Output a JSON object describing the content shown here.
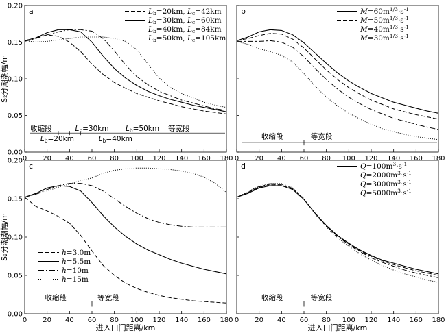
{
  "charts": [
    {
      "panel": "a",
      "xlim": [
        0,
        180
      ],
      "ylim": [
        0,
        0.2
      ],
      "xticks": [
        0,
        20,
        40,
        60,
        80,
        100,
        120,
        140,
        160,
        180
      ],
      "yticks": [
        0,
        0.05,
        0.1,
        0.15,
        0.2
      ],
      "ytick_labels": [
        "0.00",
        "0.05",
        "0.10",
        "0.15",
        "0.20"
      ],
      "ylabel": "S₂分潮潮幅/m",
      "xlabel": "",
      "legend": "top-right",
      "series": [
        {
          "name": "Lb=20km, Lc=42km",
          "dash": "6,3",
          "x": [
            0,
            10,
            20,
            30,
            40,
            50,
            60,
            70,
            80,
            90,
            100,
            110,
            120,
            130,
            140,
            150,
            160,
            170,
            180
          ],
          "y": [
            0.152,
            0.156,
            0.16,
            0.158,
            0.15,
            0.137,
            0.12,
            0.106,
            0.095,
            0.087,
            0.08,
            0.075,
            0.07,
            0.066,
            0.062,
            0.059,
            0.056,
            0.054,
            0.052
          ]
        },
        {
          "name": "Lb=30km, Lc=60km",
          "dash": "",
          "x": [
            0,
            10,
            20,
            30,
            40,
            50,
            60,
            70,
            80,
            90,
            100,
            110,
            120,
            130,
            140,
            150,
            160,
            170,
            180
          ],
          "y": [
            0.152,
            0.156,
            0.163,
            0.167,
            0.167,
            0.164,
            0.15,
            0.131,
            0.114,
            0.101,
            0.091,
            0.083,
            0.077,
            0.072,
            0.068,
            0.064,
            0.061,
            0.058,
            0.055
          ]
        },
        {
          "name": "Lb=40km, Lc=84km",
          "dash": "8,3,2,3",
          "x": [
            0,
            10,
            20,
            30,
            40,
            50,
            60,
            70,
            80,
            90,
            100,
            110,
            120,
            130,
            140,
            150,
            160,
            170,
            180
          ],
          "y": [
            0.151,
            0.155,
            0.16,
            0.164,
            0.167,
            0.167,
            0.165,
            0.155,
            0.138,
            0.119,
            0.103,
            0.092,
            0.083,
            0.077,
            0.071,
            0.067,
            0.063,
            0.059,
            0.057
          ]
        },
        {
          "name": "Lb=50km, Lc=105km",
          "dash": "1,2",
          "x": [
            0,
            10,
            20,
            30,
            40,
            50,
            60,
            70,
            80,
            90,
            100,
            110,
            120,
            130,
            140,
            150,
            160,
            170,
            180
          ],
          "y": [
            0.152,
            0.15,
            0.151,
            0.153,
            0.155,
            0.157,
            0.157,
            0.157,
            0.155,
            0.151,
            0.14,
            0.12,
            0.101,
            0.088,
            0.08,
            0.074,
            0.068,
            0.064,
            0.061
          ]
        }
      ],
      "annotations": [
        {
          "text": "收缩段",
          "x": 5,
          "y": 0.029
        },
        {
          "text": "Lb=30km",
          "x": 45,
          "y": 0.029
        },
        {
          "text": "Lb=50km",
          "x": 90,
          "y": 0.029
        },
        {
          "text": "等宽段",
          "x": 128,
          "y": 0.029
        },
        {
          "text": "Lb=20km",
          "x": 14,
          "y": 0.015
        },
        {
          "text": "Lb=40km",
          "x": 66,
          "y": 0.015
        }
      ]
    },
    {
      "panel": "b",
      "xlim": [
        0,
        180
      ],
      "ylim": [
        0,
        0.2
      ],
      "xticks": [
        0,
        20,
        40,
        60,
        80,
        100,
        120,
        140,
        160,
        180
      ],
      "yticks": [
        0,
        0.05,
        0.1,
        0.15,
        0.2
      ],
      "ylabel": "",
      "xlabel": "",
      "legend": "top-right",
      "series": [
        {
          "name": "M=60m1/3·s-1",
          "dash": "",
          "x": [
            0,
            10,
            20,
            30,
            40,
            50,
            60,
            70,
            80,
            90,
            100,
            110,
            120,
            130,
            140,
            150,
            160,
            170,
            180
          ],
          "y": [
            0.152,
            0.157,
            0.164,
            0.167,
            0.166,
            0.16,
            0.149,
            0.135,
            0.121,
            0.108,
            0.097,
            0.088,
            0.08,
            0.074,
            0.068,
            0.064,
            0.06,
            0.056,
            0.053
          ]
        },
        {
          "name": "M=50m1/3·s-1",
          "dash": "6,3",
          "x": [
            0,
            10,
            20,
            30,
            40,
            50,
            60,
            70,
            80,
            90,
            100,
            110,
            120,
            130,
            140,
            150,
            160,
            170,
            180
          ],
          "y": [
            0.152,
            0.155,
            0.159,
            0.162,
            0.161,
            0.154,
            0.142,
            0.127,
            0.112,
            0.099,
            0.088,
            0.079,
            0.071,
            0.065,
            0.059,
            0.055,
            0.051,
            0.048,
            0.045
          ]
        },
        {
          "name": "M=40m1/3·s-1",
          "dash": "8,3,2,3",
          "x": [
            0,
            10,
            20,
            30,
            40,
            50,
            60,
            70,
            80,
            90,
            100,
            110,
            120,
            130,
            140,
            150,
            160,
            170,
            180
          ],
          "y": [
            0.151,
            0.151,
            0.151,
            0.152,
            0.15,
            0.143,
            0.13,
            0.114,
            0.099,
            0.086,
            0.075,
            0.066,
            0.058,
            0.052,
            0.046,
            0.042,
            0.038,
            0.034,
            0.031
          ]
        },
        {
          "name": "M=30m1/3·s-1",
          "dash": "1,2",
          "x": [
            0,
            10,
            20,
            30,
            40,
            50,
            60,
            70,
            80,
            90,
            100,
            110,
            120,
            130,
            140,
            150,
            160,
            170,
            180
          ],
          "y": [
            0.151,
            0.147,
            0.141,
            0.137,
            0.132,
            0.123,
            0.107,
            0.09,
            0.075,
            0.063,
            0.053,
            0.045,
            0.038,
            0.032,
            0.028,
            0.024,
            0.021,
            0.019,
            0.017
          ]
        }
      ],
      "annotations": [
        {
          "text": "收缩段",
          "x": 22,
          "y": 0.018
        },
        {
          "text": "等宽段",
          "x": 66,
          "y": 0.018
        }
      ]
    },
    {
      "panel": "c",
      "xlim": [
        0,
        180
      ],
      "ylim": [
        0,
        0.2
      ],
      "xticks": [
        0,
        20,
        40,
        60,
        80,
        100,
        120,
        140,
        160,
        180
      ],
      "yticks": [
        0,
        0.05,
        0.1,
        0.15,
        0.2
      ],
      "ytick_labels": [
        "0.00",
        "0.05",
        "0.10",
        "0.15",
        "0.20"
      ],
      "ylabel": "S₂分潮潮幅/m",
      "xlabel": "",
      "legend": "bottom-left",
      "series": [
        {
          "name": "h=3.0m",
          "dash": "6,3",
          "x": [
            0,
            10,
            20,
            30,
            40,
            50,
            60,
            70,
            80,
            90,
            100,
            110,
            120,
            130,
            140,
            150,
            160,
            170,
            180
          ],
          "y": [
            0.152,
            0.14,
            0.134,
            0.127,
            0.118,
            0.102,
            0.082,
            0.063,
            0.05,
            0.04,
            0.033,
            0.028,
            0.024,
            0.021,
            0.019,
            0.017,
            0.016,
            0.015,
            0.014
          ]
        },
        {
          "name": "h=5.5m",
          "dash": "",
          "x": [
            0,
            10,
            20,
            30,
            40,
            50,
            60,
            70,
            80,
            90,
            100,
            110,
            120,
            130,
            140,
            150,
            160,
            170,
            180
          ],
          "y": [
            0.152,
            0.157,
            0.164,
            0.167,
            0.166,
            0.16,
            0.145,
            0.128,
            0.113,
            0.101,
            0.091,
            0.083,
            0.077,
            0.071,
            0.066,
            0.062,
            0.058,
            0.055,
            0.052
          ]
        },
        {
          "name": "h=10m",
          "dash": "8,3,2,3",
          "x": [
            0,
            10,
            20,
            30,
            40,
            50,
            60,
            70,
            80,
            90,
            100,
            110,
            120,
            130,
            140,
            150,
            160,
            170,
            180
          ],
          "y": [
            0.152,
            0.156,
            0.162,
            0.167,
            0.17,
            0.17,
            0.167,
            0.16,
            0.15,
            0.14,
            0.131,
            0.124,
            0.119,
            0.116,
            0.114,
            0.113,
            0.113,
            0.113,
            0.113
          ]
        },
        {
          "name": "h=15m",
          "dash": "1,2",
          "x": [
            0,
            10,
            20,
            30,
            40,
            50,
            60,
            70,
            80,
            90,
            100,
            110,
            120,
            130,
            140,
            150,
            160,
            170,
            180
          ],
          "y": [
            0.152,
            0.156,
            0.16,
            0.165,
            0.169,
            0.174,
            0.177,
            0.183,
            0.187,
            0.189,
            0.19,
            0.19,
            0.189,
            0.188,
            0.186,
            0.183,
            0.178,
            0.17,
            0.158
          ]
        }
      ],
      "annotations": [
        {
          "text": "收缩段",
          "x": 18,
          "y": 0.018
        },
        {
          "text": "等宽段",
          "x": 65,
          "y": 0.018
        }
      ]
    },
    {
      "panel": "d",
      "xlim": [
        0,
        180
      ],
      "ylim": [
        0,
        0.2
      ],
      "xticks": [
        0,
        20,
        40,
        60,
        80,
        100,
        120,
        140,
        160,
        180
      ],
      "yticks": [
        0,
        0.05,
        0.1,
        0.15,
        0.2
      ],
      "ylabel": "",
      "xlabel": "",
      "legend": "top-right",
      "series": [
        {
          "name": "Q=100m3·s-1",
          "dash": "",
          "x": [
            0,
            10,
            20,
            30,
            40,
            50,
            60,
            70,
            80,
            90,
            100,
            110,
            120,
            130,
            140,
            150,
            160,
            170,
            180
          ],
          "y": [
            0.152,
            0.157,
            0.164,
            0.167,
            0.167,
            0.162,
            0.149,
            0.131,
            0.115,
            0.102,
            0.092,
            0.083,
            0.076,
            0.07,
            0.066,
            0.062,
            0.058,
            0.055,
            0.052
          ]
        },
        {
          "name": "Q=2000m3·s-1",
          "dash": "6,3",
          "x": [
            0,
            10,
            20,
            30,
            40,
            50,
            60,
            70,
            80,
            90,
            100,
            110,
            120,
            130,
            140,
            150,
            160,
            170,
            180
          ],
          "y": [
            0.152,
            0.158,
            0.165,
            0.168,
            0.168,
            0.162,
            0.149,
            0.131,
            0.115,
            0.102,
            0.091,
            0.082,
            0.075,
            0.069,
            0.064,
            0.06,
            0.056,
            0.053,
            0.05
          ]
        },
        {
          "name": "Q=3000m3·s-1",
          "dash": "8,3,2,3",
          "x": [
            0,
            10,
            20,
            30,
            40,
            50,
            60,
            70,
            80,
            90,
            100,
            110,
            120,
            130,
            140,
            150,
            160,
            170,
            180
          ],
          "y": [
            0.152,
            0.158,
            0.166,
            0.169,
            0.169,
            0.163,
            0.149,
            0.131,
            0.114,
            0.101,
            0.09,
            0.081,
            0.073,
            0.067,
            0.062,
            0.057,
            0.053,
            0.05,
            0.047
          ]
        },
        {
          "name": "Q=5000m3·s-1",
          "dash": "1,2",
          "x": [
            0,
            10,
            20,
            30,
            40,
            50,
            60,
            70,
            80,
            90,
            100,
            110,
            120,
            130,
            140,
            150,
            160,
            170,
            180
          ],
          "y": [
            0.152,
            0.159,
            0.167,
            0.17,
            0.17,
            0.164,
            0.15,
            0.13,
            0.113,
            0.099,
            0.088,
            0.078,
            0.07,
            0.063,
            0.057,
            0.052,
            0.048,
            0.044,
            0.041
          ]
        }
      ],
      "annotations": [
        {
          "text": "收缩段",
          "x": 22,
          "y": 0.018
        },
        {
          "text": "等宽段",
          "x": 66,
          "y": 0.018
        }
      ]
    }
  ],
  "chart_data": [
    {
      "type": "line",
      "panel": "a"
    },
    {
      "type": "line",
      "panel": "b"
    },
    {
      "type": "line",
      "panel": "c"
    },
    {
      "type": "line",
      "panel": "d"
    }
  ],
  "x_axis_title": "进入口门距离/km"
}
